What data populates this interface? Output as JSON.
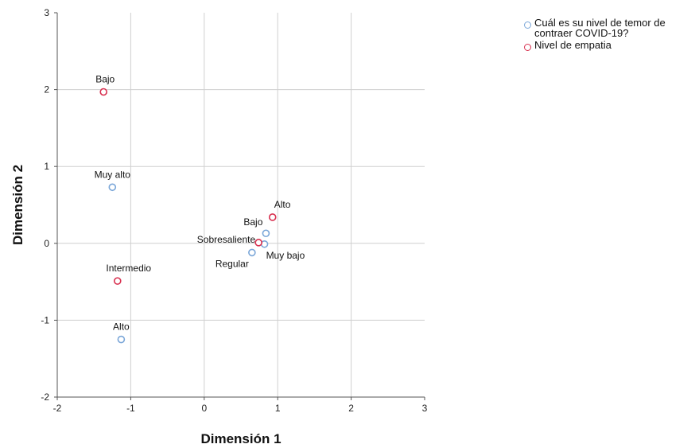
{
  "chart_data": {
    "type": "scatter",
    "xlabel": "Dimensión 1",
    "ylabel": "Dimensión 2",
    "xlim": [
      -2,
      3
    ],
    "ylim": [
      -2,
      3
    ],
    "xticks": [
      "-2",
      "-1",
      "0",
      "1",
      "2",
      "3"
    ],
    "yticks": [
      "-2",
      "-1",
      "0",
      "1",
      "2",
      "3"
    ],
    "grid": true,
    "legend_position": "top-right",
    "series": [
      {
        "name": "Cuál es su nivel de temor de contraer COVID-19?",
        "color": "#7aa6d8",
        "points": [
          {
            "label": "Muy alto",
            "x": -1.25,
            "y": 0.73
          },
          {
            "label": "Alto",
            "x": -1.13,
            "y": -1.25
          },
          {
            "label": "Bajo",
            "x": 0.84,
            "y": 0.13
          },
          {
            "label": "Muy bajo",
            "x": 0.82,
            "y": -0.01
          },
          {
            "label": "Regular",
            "x": 0.65,
            "y": -0.12
          }
        ]
      },
      {
        "name": "Nivel de empatia",
        "color": "#d8304f",
        "points": [
          {
            "label": "Bajo",
            "x": -1.37,
            "y": 1.97
          },
          {
            "label": "Intermedio",
            "x": -1.18,
            "y": -0.49
          },
          {
            "label": "Alto",
            "x": 0.93,
            "y": 0.34
          },
          {
            "label": "Sobresaliente",
            "x": 0.74,
            "y": 0.01
          }
        ]
      }
    ]
  }
}
